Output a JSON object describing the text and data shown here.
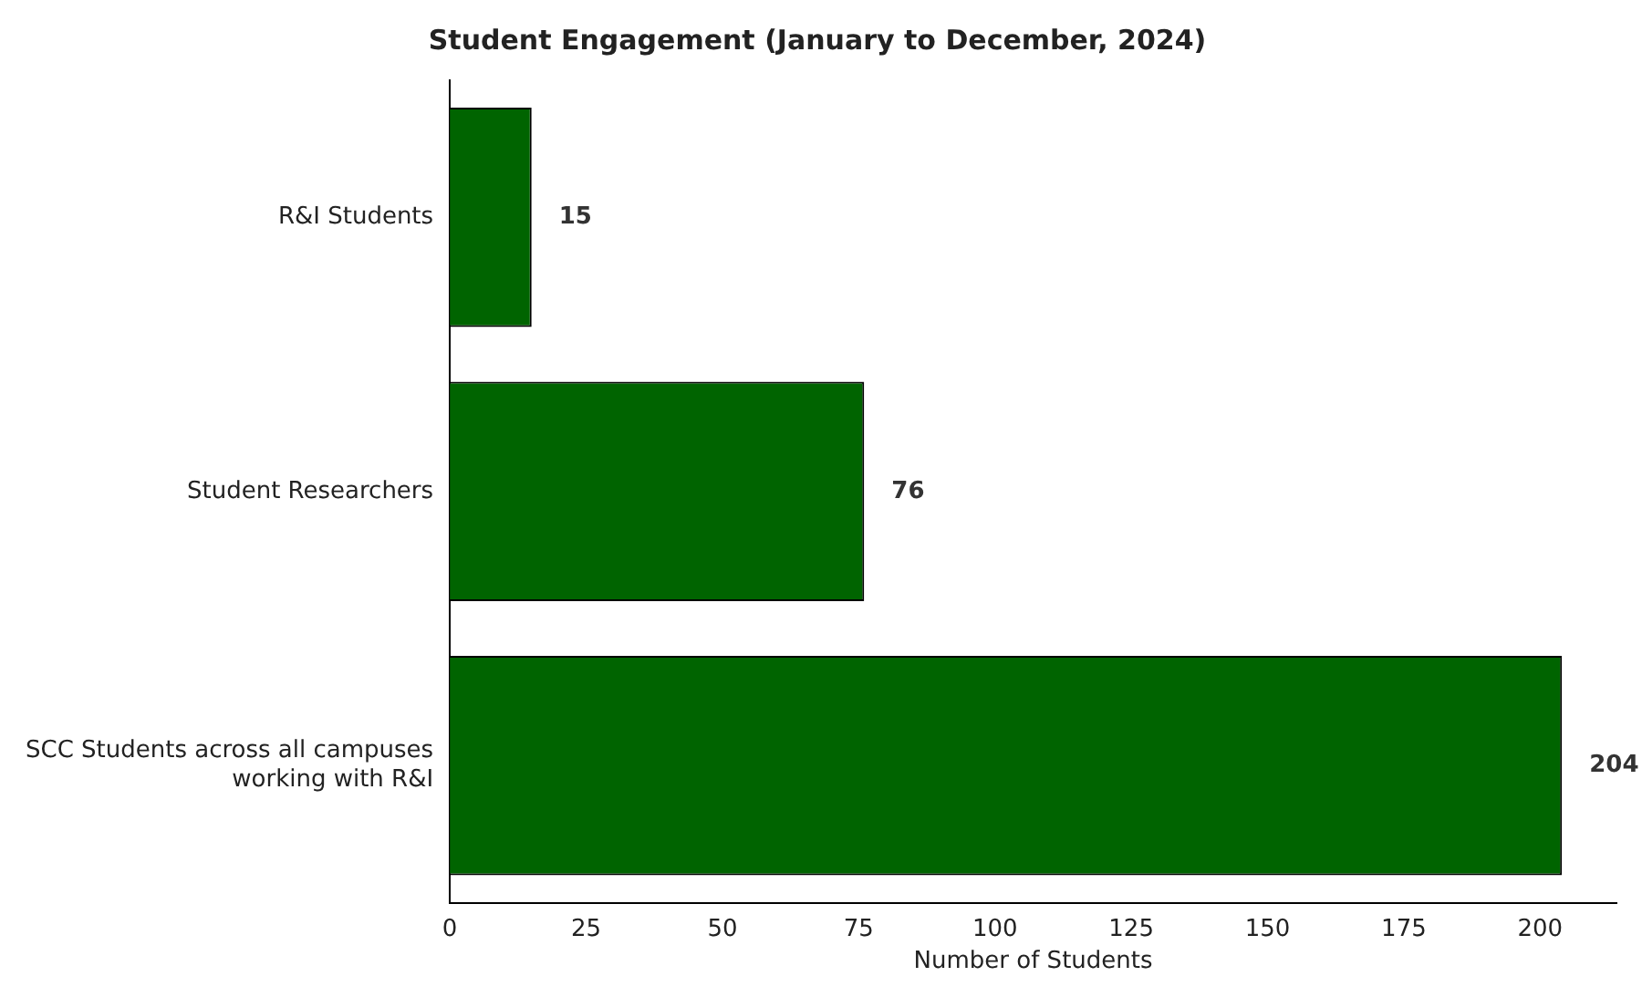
{
  "chart_data": {
    "type": "bar",
    "orientation": "horizontal",
    "title": "Student Engagement (January to December, 2024)",
    "xlabel": "Number of Students",
    "categories": [
      "R&I Students",
      "Student Researchers",
      "SCC Students across all campuses\nworking with R&I"
    ],
    "values": [
      15,
      76,
      204
    ],
    "color": "#006400",
    "xlim": [
      0,
      214
    ],
    "xticks": [
      0,
      25,
      50,
      75,
      100,
      125,
      150,
      175,
      200
    ],
    "grid": false,
    "legend": false,
    "data_labels": true
  }
}
